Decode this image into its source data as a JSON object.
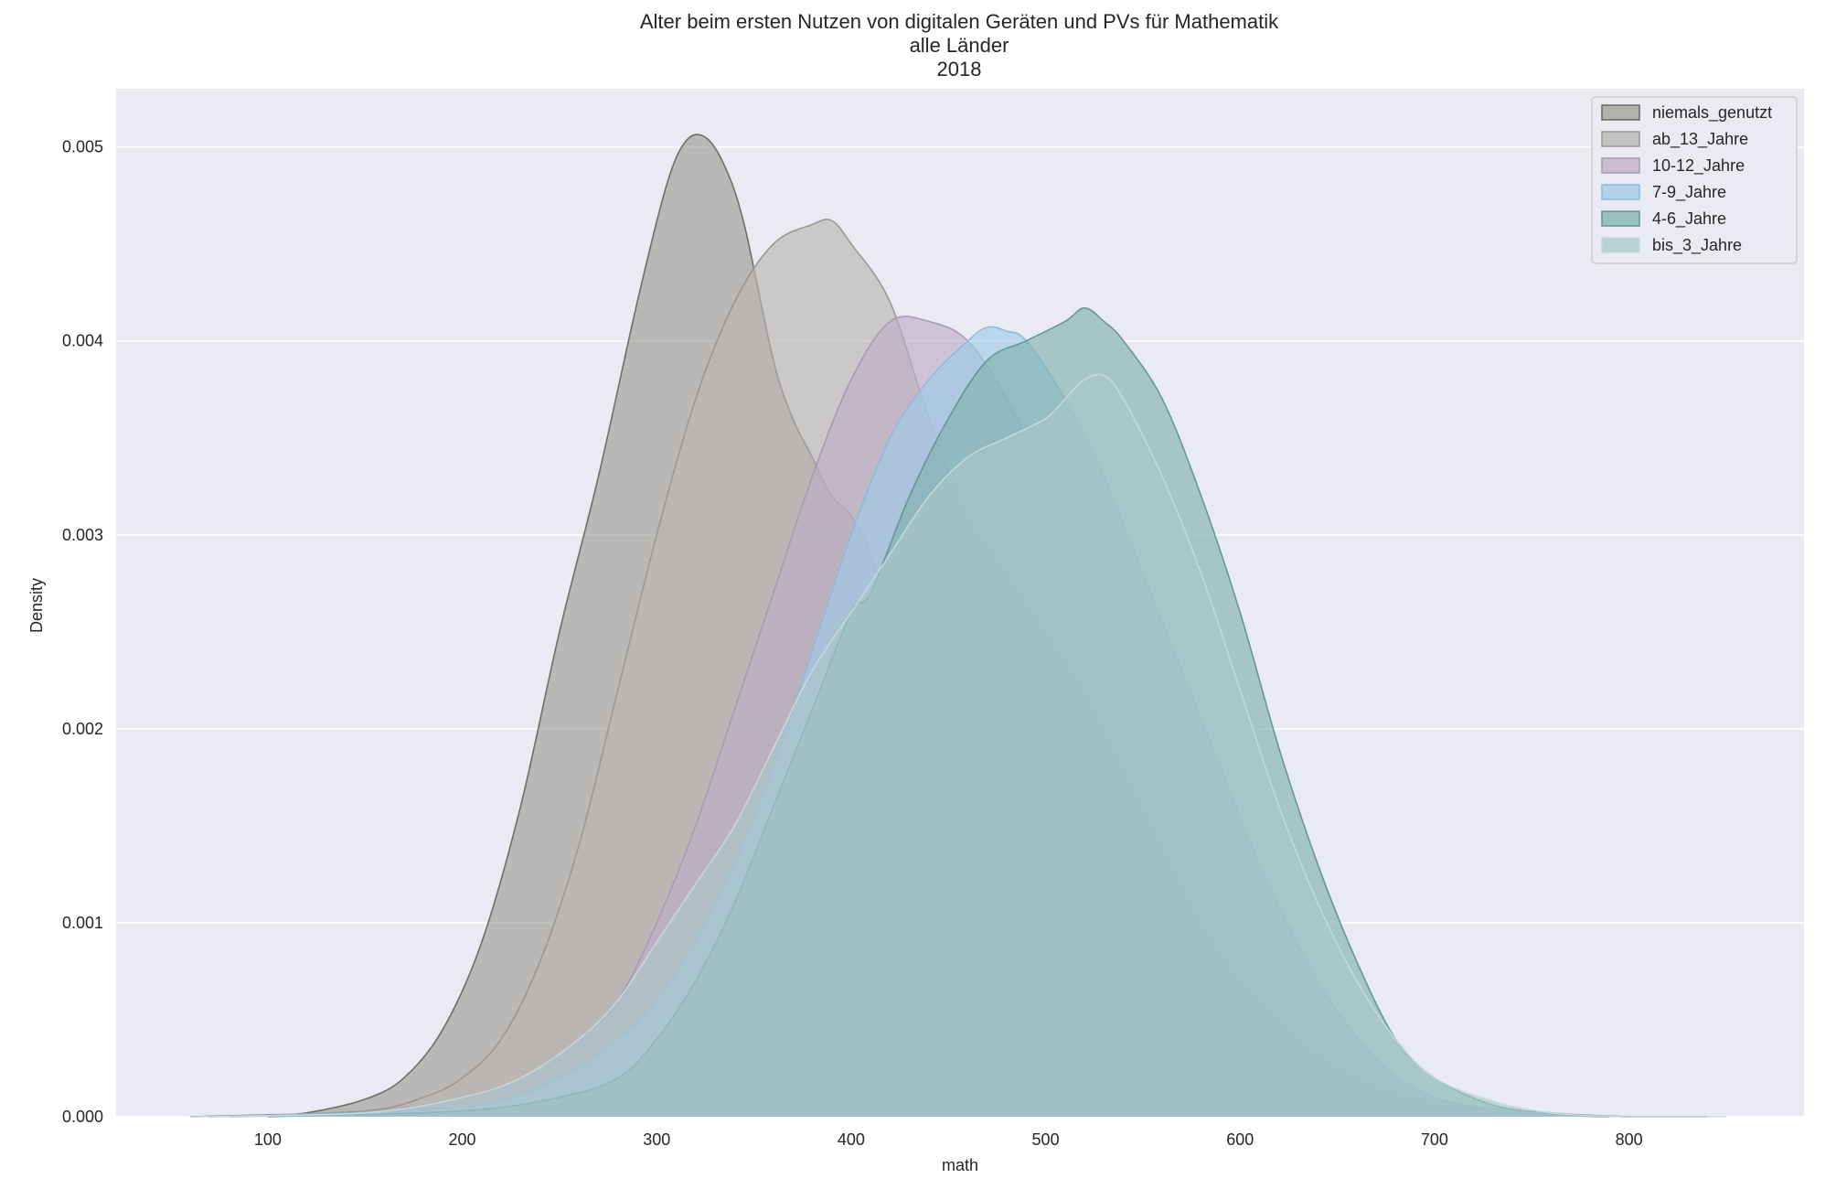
{
  "chart_data": {
    "type": "area",
    "title_lines": [
      "Alter beim ersten Nutzen von digitalen Geräten und PVs für Mathematik",
      "alle Länder",
      "2018"
    ],
    "xlabel": "math",
    "ylabel": "Density",
    "xlim": [
      22,
      890
    ],
    "ylim": [
      0,
      0.0053
    ],
    "x_ticks": [
      "100",
      "200",
      "300",
      "400",
      "500",
      "600",
      "700",
      "800"
    ],
    "y_ticks": [
      "0.000",
      "0.001",
      "0.002",
      "0.003",
      "0.004",
      "0.005"
    ],
    "grid": true,
    "legend_position": "top-right",
    "series": [
      {
        "name": "niemals_genutzt",
        "fill": "#a09d97",
        "stroke": "#6b685f",
        "x": [
          60,
          100,
          120,
          150,
          170,
          190,
          210,
          230,
          250,
          270,
          290,
          305,
          315,
          325,
          335,
          345,
          360,
          370,
          380,
          390,
          400,
          410,
          420,
          440,
          460,
          480,
          500,
          530,
          560,
          600,
          650,
          700,
          750,
          790
        ],
        "y": [
          0,
          1e-05,
          2e-05,
          9e-05,
          0.0002,
          0.00045,
          0.0009,
          0.0016,
          0.0025,
          0.0033,
          0.0042,
          0.0048,
          0.00503,
          0.00505,
          0.0049,
          0.0046,
          0.0039,
          0.0036,
          0.0034,
          0.0032,
          0.0031,
          0.0029,
          0.0026,
          0.0022,
          0.0019,
          0.0016,
          0.0013,
          0.0009,
          0.0006,
          0.0003,
          0.0001,
          3e-05,
          1e-05,
          0
        ]
      },
      {
        "name": "ab_13_Jahre",
        "fill": "#b8b5b0",
        "stroke": "#9a9590",
        "x": [
          70,
          150,
          180,
          200,
          220,
          240,
          260,
          280,
          300,
          320,
          340,
          360,
          380,
          390,
          400,
          420,
          440,
          460,
          480,
          500,
          520,
          540,
          560,
          580,
          600,
          630,
          660,
          700,
          740,
          800
        ],
        "y": [
          0,
          3e-05,
          0.0001,
          0.0002,
          0.0004,
          0.0008,
          0.0014,
          0.0022,
          0.003,
          0.0037,
          0.0042,
          0.0045,
          0.0046,
          0.00462,
          0.0045,
          0.0042,
          0.0036,
          0.0031,
          0.0028,
          0.0025,
          0.0022,
          0.0018,
          0.0014,
          0.001,
          0.0007,
          0.0004,
          0.0002,
          7e-05,
          2e-05,
          0
        ]
      },
      {
        "name": "10-12_Jahre",
        "fill": "#bcaec6",
        "stroke": "#a897b4",
        "x": [
          80,
          150,
          200,
          230,
          260,
          280,
          300,
          320,
          340,
          360,
          380,
          400,
          420,
          440,
          460,
          480,
          500,
          520,
          540,
          560,
          580,
          600,
          630,
          660,
          700,
          740,
          800
        ],
        "y": [
          0,
          2e-05,
          0.0001,
          0.0002,
          0.0004,
          0.0006,
          0.001,
          0.0015,
          0.0021,
          0.0027,
          0.0033,
          0.0038,
          0.0041,
          0.0041,
          0.004,
          0.0037,
          0.0033,
          0.0029,
          0.0024,
          0.0019,
          0.0014,
          0.001,
          0.0006,
          0.0003,
          0.0001,
          3e-05,
          0
        ]
      },
      {
        "name": "7-9_Jahre",
        "fill": "#9fcbe6",
        "stroke": "#86bcdd",
        "x": [
          70,
          200,
          250,
          280,
          300,
          320,
          340,
          360,
          380,
          400,
          420,
          440,
          460,
          470,
          480,
          490,
          510,
          530,
          550,
          570,
          590,
          610,
          640,
          670,
          700,
          740,
          800
        ],
        "y": [
          0,
          5e-05,
          0.0002,
          0.0004,
          0.0006,
          0.0009,
          0.0013,
          0.0018,
          0.0024,
          0.003,
          0.0035,
          0.0038,
          0.004,
          0.00407,
          0.00405,
          0.004,
          0.0037,
          0.0033,
          0.0028,
          0.0023,
          0.0018,
          0.0013,
          0.0007,
          0.0003,
          0.0001,
          2e-05,
          0
        ]
      },
      {
        "name": "4-6_Jahre",
        "fill": "#7fb0ad",
        "stroke": "#5f9591",
        "x": [
          100,
          200,
          250,
          280,
          300,
          320,
          340,
          360,
          380,
          400,
          410,
          430,
          450,
          470,
          490,
          510,
          520,
          530,
          540,
          560,
          580,
          600,
          620,
          640,
          660,
          680,
          700,
          730,
          760,
          800,
          840
        ],
        "y": [
          0,
          3e-05,
          0.0001,
          0.0002,
          0.0004,
          0.0007,
          0.0011,
          0.0016,
          0.0021,
          0.0026,
          0.0027,
          0.0032,
          0.0036,
          0.0039,
          0.004,
          0.0041,
          0.00417,
          0.0041,
          0.004,
          0.0037,
          0.0032,
          0.0026,
          0.0019,
          0.0013,
          0.0008,
          0.0004,
          0.0002,
          6e-05,
          2e-05,
          0,
          0
        ]
      },
      {
        "name": "bis_3_Jahre",
        "fill": "#aac8ca",
        "stroke": "#c6dadb",
        "x": [
          60,
          150,
          200,
          230,
          260,
          280,
          300,
          320,
          340,
          360,
          380,
          400,
          420,
          440,
          460,
          480,
          500,
          510,
          520,
          530,
          540,
          560,
          580,
          600,
          620,
          640,
          660,
          680,
          700,
          730,
          760,
          800,
          850
        ],
        "y": [
          0,
          2e-05,
          0.0001,
          0.0002,
          0.0004,
          0.0006,
          0.0009,
          0.0012,
          0.0015,
          0.0019,
          0.0023,
          0.0026,
          0.0029,
          0.0032,
          0.0034,
          0.0035,
          0.0036,
          0.0037,
          0.0038,
          0.00382,
          0.0037,
          0.0033,
          0.0028,
          0.0022,
          0.0016,
          0.0011,
          0.0007,
          0.0004,
          0.0002,
          8e-05,
          2e-05,
          0,
          0
        ]
      }
    ]
  }
}
